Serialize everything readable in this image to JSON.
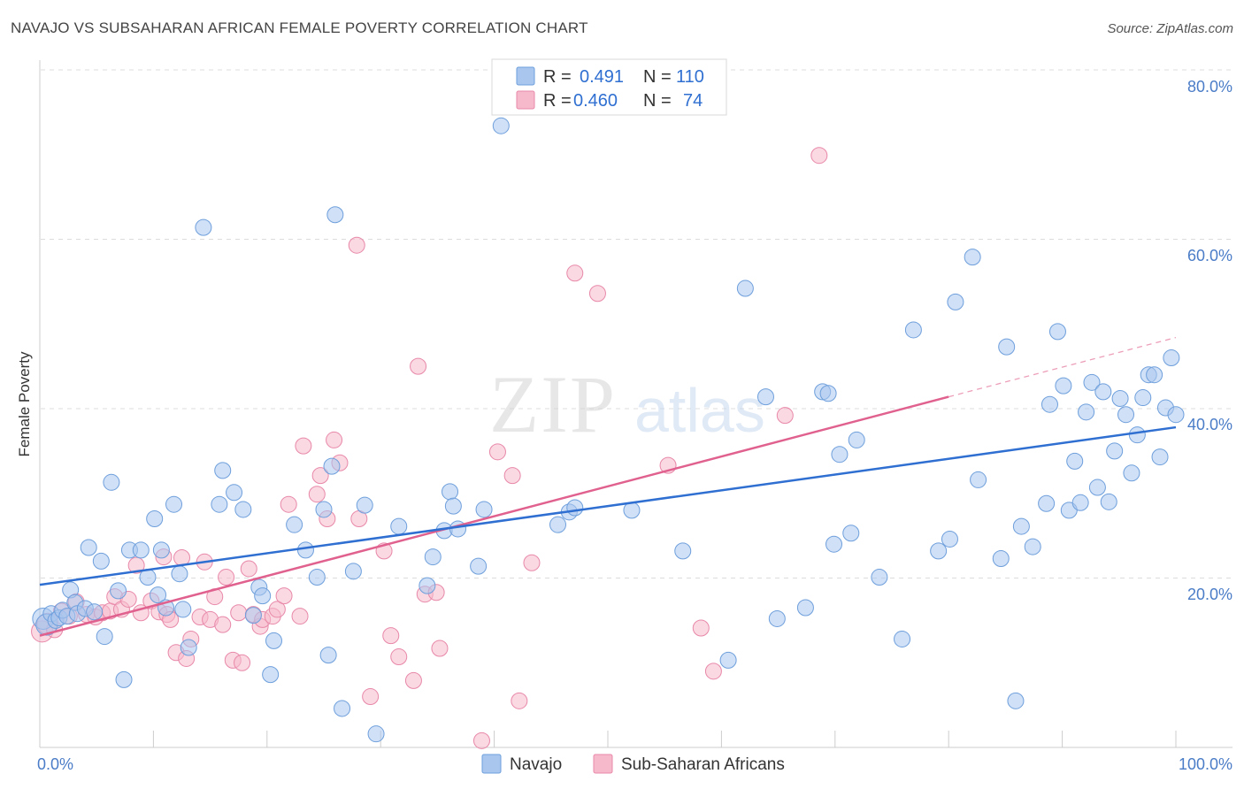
{
  "header": {
    "title": "NAVAJO VS SUBSAHARAN AFRICAN FEMALE POVERTY CORRELATION CHART",
    "source": "Source: ZipAtlas.com"
  },
  "watermark": {
    "zip": "ZIP",
    "atlas": "atlas"
  },
  "chart_data": {
    "type": "scatter",
    "ylabel": "Female Poverty",
    "xlim": [
      0,
      100
    ],
    "ylim": [
      0,
      80
    ],
    "x_tick_labels": [
      "0.0%",
      "100.0%"
    ],
    "y_tick_labels": [
      "20.0%",
      "40.0%",
      "60.0%",
      "80.0%"
    ],
    "y_ticks": [
      20,
      40,
      60,
      80
    ],
    "grid": true,
    "legend_position": "top-center",
    "colors": {
      "navajo_fill": "#a9c7ee",
      "navajo_stroke": "#6e9fdc",
      "navajo_line": "#2f6fd1",
      "ssa_fill": "#f6b9cc",
      "ssa_stroke": "#e888a8",
      "ssa_line": "#e0608e",
      "tick_text": "#4a7cc7"
    },
    "legend": [
      {
        "r_label": "R =",
        "r_value": "0.491",
        "n_label": "N =",
        "n_value": "110"
      },
      {
        "r_label": "R =",
        "r_value": "0.460",
        "n_label": "N =",
        "n_value": "74"
      }
    ],
    "series": [
      {
        "name": "Navajo",
        "trend": {
          "x": [
            0,
            100
          ],
          "y": [
            19.2,
            37.8
          ]
        },
        "points": [
          [
            0.3,
            15.2
          ],
          [
            0.6,
            14.5
          ],
          [
            1.0,
            15.8
          ],
          [
            1.4,
            15.0
          ],
          [
            1.7,
            15.3
          ],
          [
            2.0,
            16.2
          ],
          [
            2.4,
            15.5
          ],
          [
            2.7,
            18.6
          ],
          [
            3.1,
            17.1
          ],
          [
            3.3,
            15.8
          ],
          [
            4.0,
            16.4
          ],
          [
            4.3,
            23.6
          ],
          [
            4.8,
            16.0
          ],
          [
            5.4,
            22.0
          ],
          [
            5.7,
            13.1
          ],
          [
            6.3,
            31.3
          ],
          [
            6.9,
            18.5
          ],
          [
            7.4,
            8.0
          ],
          [
            7.9,
            23.3
          ],
          [
            8.9,
            23.3
          ],
          [
            9.5,
            20.1
          ],
          [
            10.1,
            27.0
          ],
          [
            10.4,
            18.0
          ],
          [
            10.7,
            23.3
          ],
          [
            11.1,
            16.5
          ],
          [
            11.8,
            28.7
          ],
          [
            12.3,
            20.5
          ],
          [
            12.6,
            16.3
          ],
          [
            13.1,
            11.8
          ],
          [
            14.4,
            61.4
          ],
          [
            15.8,
            28.7
          ],
          [
            16.1,
            32.7
          ],
          [
            17.1,
            30.1
          ],
          [
            17.9,
            28.1
          ],
          [
            18.8,
            15.6
          ],
          [
            19.3,
            18.9
          ],
          [
            19.6,
            17.9
          ],
          [
            20.3,
            8.6
          ],
          [
            20.6,
            12.6
          ],
          [
            22.4,
            26.3
          ],
          [
            23.4,
            23.3
          ],
          [
            24.4,
            20.1
          ],
          [
            25.0,
            28.1
          ],
          [
            25.4,
            10.9
          ],
          [
            25.7,
            33.2
          ],
          [
            26.0,
            62.9
          ],
          [
            26.6,
            4.6
          ],
          [
            27.6,
            20.8
          ],
          [
            28.6,
            28.6
          ],
          [
            29.6,
            1.6
          ],
          [
            31.6,
            26.1
          ],
          [
            34.1,
            19.1
          ],
          [
            34.6,
            22.5
          ],
          [
            35.6,
            25.6
          ],
          [
            36.1,
            30.2
          ],
          [
            36.4,
            28.5
          ],
          [
            36.8,
            25.8
          ],
          [
            38.6,
            21.4
          ],
          [
            39.1,
            28.1
          ],
          [
            40.6,
            73.4
          ],
          [
            45.6,
            26.3
          ],
          [
            46.6,
            27.8
          ],
          [
            47.1,
            28.3
          ],
          [
            52.1,
            28.0
          ],
          [
            56.6,
            23.2
          ],
          [
            60.6,
            10.3
          ],
          [
            62.1,
            54.2
          ],
          [
            63.9,
            41.4
          ],
          [
            64.9,
            15.2
          ],
          [
            67.4,
            16.5
          ],
          [
            68.9,
            42.0
          ],
          [
            69.4,
            41.8
          ],
          [
            69.9,
            24.0
          ],
          [
            70.4,
            34.6
          ],
          [
            71.4,
            25.3
          ],
          [
            71.9,
            36.3
          ],
          [
            73.9,
            20.1
          ],
          [
            75.9,
            12.8
          ],
          [
            76.9,
            49.3
          ],
          [
            79.1,
            23.2
          ],
          [
            80.1,
            24.6
          ],
          [
            80.6,
            52.6
          ],
          [
            82.1,
            57.9
          ],
          [
            82.6,
            31.6
          ],
          [
            84.6,
            22.3
          ],
          [
            85.1,
            47.3
          ],
          [
            85.9,
            5.5
          ],
          [
            86.4,
            26.1
          ],
          [
            87.4,
            23.7
          ],
          [
            88.6,
            28.8
          ],
          [
            88.9,
            40.5
          ],
          [
            89.6,
            49.1
          ],
          [
            90.1,
            42.7
          ],
          [
            90.6,
            28.0
          ],
          [
            91.1,
            33.8
          ],
          [
            91.6,
            28.9
          ],
          [
            92.1,
            39.6
          ],
          [
            92.6,
            43.1
          ],
          [
            93.1,
            30.7
          ],
          [
            93.6,
            42.0
          ],
          [
            94.1,
            29.0
          ],
          [
            94.6,
            35.0
          ],
          [
            95.1,
            41.2
          ],
          [
            95.6,
            39.3
          ],
          [
            96.1,
            32.4
          ],
          [
            96.6,
            36.9
          ],
          [
            97.1,
            41.3
          ],
          [
            97.6,
            44.0
          ],
          [
            98.1,
            44.0
          ],
          [
            98.6,
            34.3
          ],
          [
            99.1,
            40.1
          ],
          [
            99.6,
            46.0
          ],
          [
            100.0,
            39.3
          ]
        ]
      },
      {
        "name": "Sub-Saharan Africans",
        "trend": {
          "x": [
            0,
            80
          ],
          "y": [
            13.2,
            41.4
          ]
        },
        "trend_extension": {
          "x": [
            80,
            100
          ],
          "y": [
            41.4,
            48.4
          ]
        },
        "points": [
          [
            0.2,
            13.7
          ],
          [
            0.7,
            14.6
          ],
          [
            1.3,
            13.9
          ],
          [
            1.9,
            16.1
          ],
          [
            2.6,
            15.5
          ],
          [
            3.2,
            17.2
          ],
          [
            4.1,
            15.7
          ],
          [
            4.9,
            15.4
          ],
          [
            5.5,
            15.9
          ],
          [
            6.2,
            16.1
          ],
          [
            6.6,
            17.8
          ],
          [
            7.2,
            16.3
          ],
          [
            7.8,
            17.5
          ],
          [
            8.5,
            21.5
          ],
          [
            8.9,
            15.9
          ],
          [
            9.8,
            17.3
          ],
          [
            10.5,
            16.0
          ],
          [
            10.9,
            22.5
          ],
          [
            11.2,
            15.7
          ],
          [
            11.5,
            15.1
          ],
          [
            12.0,
            11.2
          ],
          [
            12.5,
            22.4
          ],
          [
            12.9,
            10.5
          ],
          [
            13.3,
            12.8
          ],
          [
            14.1,
            15.4
          ],
          [
            14.5,
            21.9
          ],
          [
            15.0,
            15.1
          ],
          [
            15.4,
            17.8
          ],
          [
            16.1,
            14.5
          ],
          [
            16.4,
            20.1
          ],
          [
            17.0,
            10.3
          ],
          [
            17.5,
            15.9
          ],
          [
            17.8,
            10.0
          ],
          [
            18.4,
            21.1
          ],
          [
            18.8,
            15.7
          ],
          [
            19.4,
            14.3
          ],
          [
            19.6,
            15.1
          ],
          [
            20.5,
            15.5
          ],
          [
            20.9,
            16.3
          ],
          [
            21.5,
            17.9
          ],
          [
            21.9,
            28.7
          ],
          [
            22.9,
            15.5
          ],
          [
            23.2,
            35.6
          ],
          [
            24.4,
            29.9
          ],
          [
            24.7,
            32.1
          ],
          [
            25.3,
            27.0
          ],
          [
            25.9,
            36.3
          ],
          [
            26.4,
            33.6
          ],
          [
            27.9,
            59.3
          ],
          [
            28.1,
            27.0
          ],
          [
            29.1,
            6.0
          ],
          [
            30.3,
            23.2
          ],
          [
            30.9,
            13.2
          ],
          [
            31.6,
            10.7
          ],
          [
            32.9,
            7.9
          ],
          [
            33.3,
            45.0
          ],
          [
            33.9,
            18.1
          ],
          [
            34.9,
            18.3
          ],
          [
            35.2,
            11.7
          ],
          [
            38.9,
            0.8
          ],
          [
            40.3,
            34.9
          ],
          [
            41.6,
            32.1
          ],
          [
            42.2,
            5.5
          ],
          [
            43.3,
            21.8
          ],
          [
            47.1,
            56.0
          ],
          [
            49.1,
            53.6
          ],
          [
            55.3,
            33.3
          ],
          [
            58.2,
            14.1
          ],
          [
            59.3,
            9.0
          ],
          [
            65.6,
            39.2
          ],
          [
            68.6,
            69.9
          ]
        ]
      }
    ]
  },
  "bottom_legend": [
    {
      "label": "Navajo"
    },
    {
      "label": "Sub-Saharan Africans"
    }
  ]
}
